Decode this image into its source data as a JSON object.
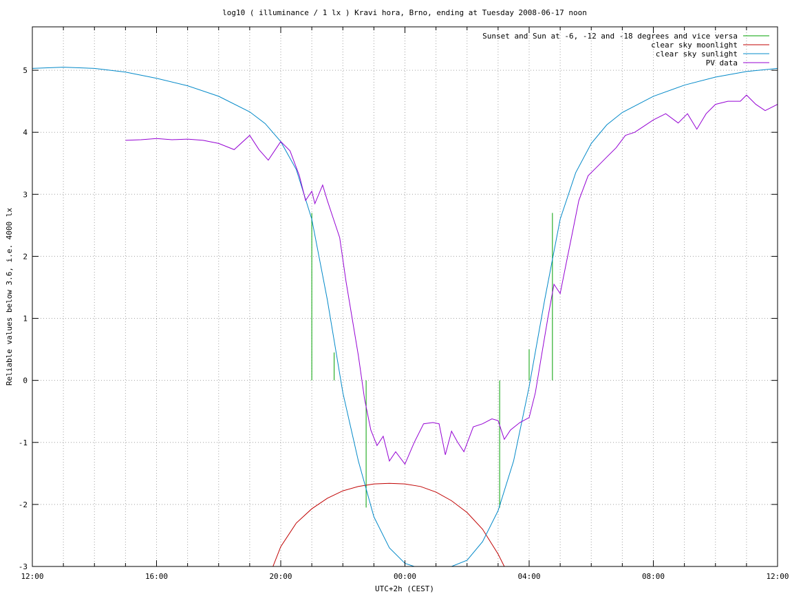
{
  "chart_data": {
    "type": "line",
    "title": "log10 ( illuminance / 1 lx ) Kravi hora, Brno, ending at Tuesday 2008-06-17 noon",
    "xlabel": "UTC+2h (CEST)",
    "ylabel": "Reliable values below 3.6, i.e. 4000 lx",
    "xlim": [
      0,
      24
    ],
    "ylim": [
      -3,
      5.7
    ],
    "x_unit": "hours since 12:00 on 2008-06-16 (CEST)",
    "x_ticks": [
      0,
      4,
      8,
      12,
      16,
      20,
      24
    ],
    "x_tick_labels": [
      "12:00",
      "16:00",
      "20:00",
      "00:00",
      "04:00",
      "08:00",
      "12:00"
    ],
    "x_minor_step": 1,
    "y_ticks": [
      -3,
      -2,
      -1,
      0,
      1,
      2,
      3,
      4,
      5
    ],
    "y_tick_labels": [
      "-3",
      "-2",
      "-1",
      "0",
      "1",
      "2",
      "3",
      "4",
      "5"
    ],
    "grid": true,
    "legend_position": "top-right",
    "series": [
      {
        "name": "Sunset and Sun at -6, -12 and -18 degrees and vice versa",
        "color": "#00a000",
        "kind": "vertical-markers",
        "markers": [
          {
            "x": 9.0,
            "y_from": 0,
            "y_to": 2.7
          },
          {
            "x": 9.72,
            "y_from": 0,
            "y_to": 0.45
          },
          {
            "x": 10.75,
            "y_from": 0,
            "y_to": -2.05
          },
          {
            "x": 15.05,
            "y_from": 0,
            "y_to": -2.05
          },
          {
            "x": 16.0,
            "y_from": 0,
            "y_to": 0.5
          },
          {
            "x": 16.75,
            "y_from": 0,
            "y_to": 2.7
          }
        ]
      },
      {
        "name": "clear sky moonlight",
        "color": "#c00000",
        "points": [
          [
            7.75,
            -3.0
          ],
          [
            8.0,
            -2.68
          ],
          [
            8.5,
            -2.3
          ],
          [
            9.0,
            -2.07
          ],
          [
            9.5,
            -1.9
          ],
          [
            10.0,
            -1.78
          ],
          [
            10.5,
            -1.71
          ],
          [
            11.0,
            -1.67
          ],
          [
            11.5,
            -1.66
          ],
          [
            12.0,
            -1.67
          ],
          [
            12.5,
            -1.71
          ],
          [
            13.0,
            -1.8
          ],
          [
            13.5,
            -1.94
          ],
          [
            14.0,
            -2.13
          ],
          [
            14.5,
            -2.4
          ],
          [
            15.0,
            -2.8
          ],
          [
            15.2,
            -3.0
          ]
        ]
      },
      {
        "name": "clear sky sunlight",
        "color": "#0088c8",
        "points": [
          [
            0,
            5.03
          ],
          [
            1,
            5.05
          ],
          [
            2,
            5.03
          ],
          [
            3,
            4.97
          ],
          [
            4,
            4.87
          ],
          [
            5,
            4.75
          ],
          [
            6,
            4.58
          ],
          [
            7,
            4.33
          ],
          [
            7.5,
            4.14
          ],
          [
            8.0,
            3.85
          ],
          [
            8.5,
            3.4
          ],
          [
            9.0,
            2.6
          ],
          [
            9.5,
            1.3
          ],
          [
            10.0,
            -0.2
          ],
          [
            10.5,
            -1.3
          ],
          [
            11.0,
            -2.2
          ],
          [
            11.5,
            -2.7
          ],
          [
            12.0,
            -2.95
          ],
          [
            12.3,
            -3.0
          ],
          [
            13.5,
            -3.0
          ],
          [
            14.0,
            -2.9
          ],
          [
            14.5,
            -2.6
          ],
          [
            15.0,
            -2.1
          ],
          [
            15.5,
            -1.3
          ],
          [
            16.0,
            -0.1
          ],
          [
            16.5,
            1.3
          ],
          [
            17.0,
            2.6
          ],
          [
            17.5,
            3.35
          ],
          [
            18.0,
            3.82
          ],
          [
            18.5,
            4.12
          ],
          [
            19.0,
            4.32
          ],
          [
            20,
            4.58
          ],
          [
            21,
            4.76
          ],
          [
            22,
            4.89
          ],
          [
            23,
            4.98
          ],
          [
            24,
            5.03
          ]
        ]
      },
      {
        "name": "PV data",
        "color": "#9400d3",
        "points": [
          [
            3.0,
            3.87
          ],
          [
            3.5,
            3.88
          ],
          [
            4.0,
            3.9
          ],
          [
            4.5,
            3.88
          ],
          [
            5.0,
            3.89
          ],
          [
            5.5,
            3.87
          ],
          [
            6.0,
            3.82
          ],
          [
            6.5,
            3.72
          ],
          [
            7.0,
            3.95
          ],
          [
            7.3,
            3.72
          ],
          [
            7.6,
            3.55
          ],
          [
            8.0,
            3.85
          ],
          [
            8.3,
            3.7
          ],
          [
            8.6,
            3.3
          ],
          [
            8.8,
            2.9
          ],
          [
            9.0,
            3.05
          ],
          [
            9.1,
            2.85
          ],
          [
            9.35,
            3.15
          ],
          [
            9.5,
            2.9
          ],
          [
            9.7,
            2.6
          ],
          [
            9.9,
            2.3
          ],
          [
            10.1,
            1.6
          ],
          [
            10.3,
            1.0
          ],
          [
            10.5,
            0.4
          ],
          [
            10.7,
            -0.3
          ],
          [
            10.9,
            -0.8
          ],
          [
            11.1,
            -1.05
          ],
          [
            11.3,
            -0.9
          ],
          [
            11.5,
            -1.3
          ],
          [
            11.7,
            -1.15
          ],
          [
            12.0,
            -1.35
          ],
          [
            12.3,
            -1.0
          ],
          [
            12.6,
            -0.7
          ],
          [
            12.9,
            -0.68
          ],
          [
            13.1,
            -0.7
          ],
          [
            13.3,
            -1.2
          ],
          [
            13.5,
            -0.82
          ],
          [
            13.7,
            -1.0
          ],
          [
            13.9,
            -1.15
          ],
          [
            14.2,
            -0.75
          ],
          [
            14.5,
            -0.7
          ],
          [
            14.8,
            -0.62
          ],
          [
            15.0,
            -0.65
          ],
          [
            15.2,
            -0.95
          ],
          [
            15.4,
            -0.8
          ],
          [
            15.7,
            -0.68
          ],
          [
            16.0,
            -0.6
          ],
          [
            16.2,
            -0.2
          ],
          [
            16.4,
            0.4
          ],
          [
            16.6,
            1.0
          ],
          [
            16.8,
            1.55
          ],
          [
            17.0,
            1.4
          ],
          [
            17.2,
            1.9
          ],
          [
            17.4,
            2.4
          ],
          [
            17.6,
            2.9
          ],
          [
            17.9,
            3.3
          ],
          [
            18.2,
            3.45
          ],
          [
            18.5,
            3.6
          ],
          [
            18.8,
            3.75
          ],
          [
            19.1,
            3.95
          ],
          [
            19.4,
            4.0
          ],
          [
            19.7,
            4.1
          ],
          [
            20.0,
            4.2
          ],
          [
            20.4,
            4.3
          ],
          [
            20.8,
            4.15
          ],
          [
            21.1,
            4.3
          ],
          [
            21.4,
            4.05
          ],
          [
            21.7,
            4.3
          ],
          [
            22.0,
            4.45
          ],
          [
            22.4,
            4.5
          ],
          [
            22.8,
            4.5
          ],
          [
            23.0,
            4.6
          ],
          [
            23.3,
            4.45
          ],
          [
            23.6,
            4.35
          ],
          [
            24.0,
            4.45
          ]
        ]
      }
    ]
  }
}
